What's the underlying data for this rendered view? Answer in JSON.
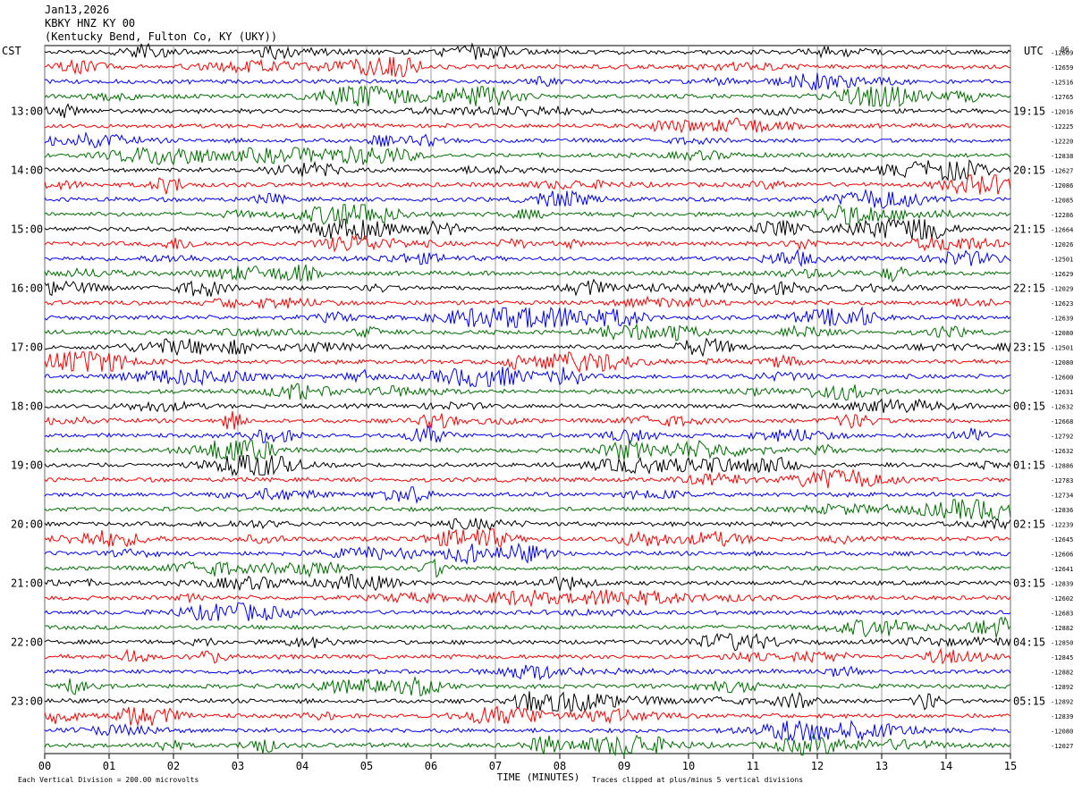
{
  "header": {
    "date": "Jan13,2026",
    "station": "KBKY HNZ KY 00",
    "location": "(Kentucky Bend, Fulton Co, KY (UKY))"
  },
  "labels": {
    "left_zone": "CST",
    "right_zone": "UTC",
    "top_right_num": "06"
  },
  "chart_data": {
    "type": "line",
    "title": "",
    "xlabel": "TIME (MINUTES)",
    "ylabel": "",
    "xlim": [
      0,
      15
    ],
    "x_ticks": [
      "00",
      "01",
      "02",
      "03",
      "04",
      "05",
      "06",
      "07",
      "08",
      "09",
      "10",
      "11",
      "12",
      "13",
      "14",
      "15"
    ],
    "rows_per_hour": 4,
    "trace_count": 48,
    "trace_colors": [
      "#000000",
      "#ff0000",
      "#0000ff",
      "#007000"
    ],
    "left_time_labels": [
      "13:00",
      "14:00",
      "15:00",
      "16:00",
      "17:00",
      "18:00",
      "19:00",
      "20:00",
      "21:00",
      "22:00",
      "23:00"
    ],
    "right_time_labels": [
      "19:15",
      "20:15",
      "21:15",
      "22:15",
      "23:15",
      "00:15",
      "01:15",
      "02:15",
      "03:15",
      "04:15",
      "05:15"
    ],
    "trace_offsets": [
      "-12609",
      "-12659",
      "-12516",
      "-12765",
      "-12016",
      "-12225",
      "-12220",
      "-12838",
      "-12627",
      "-12086",
      "-12085",
      "-12286",
      "-12664",
      "-12026",
      "-12501",
      "-12629",
      "-12029",
      "-12623",
      "-12639",
      "-12080",
      "-12501",
      "-12080",
      "-12600",
      "-12631",
      "-12632",
      "-12668",
      "-12792",
      "-12632",
      "-12886",
      "-12783",
      "-12734",
      "-12836",
      "-12239",
      "-12645",
      "-12606",
      "-12641",
      "-12839",
      "-12602",
      "-12683",
      "-12882",
      "-12850",
      "-12845",
      "-12882",
      "-12892",
      "-12892",
      "-12839",
      "-12080",
      "-12027"
    ],
    "scale_note": "Each Vertical Division =  200.00 microvolts",
    "clip_note": "Traces clipped at plus/minus 5 vertical divisions",
    "grid": true
  }
}
